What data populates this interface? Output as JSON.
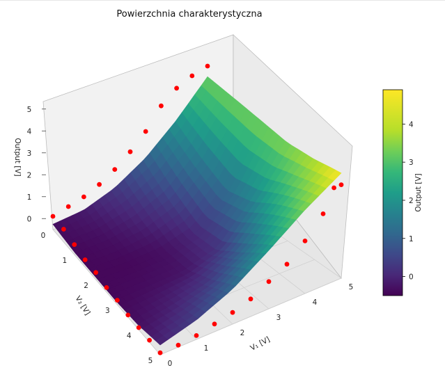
{
  "chart_data": {
    "type": "surface3d",
    "title": "Powierzchnia charakterystyczna",
    "xlabel": "V₁ [V]",
    "ylabel": "V₂ [V]",
    "zlabel": "Output [V]",
    "xlim": [
      0,
      5
    ],
    "ylim": [
      0,
      5
    ],
    "zlim": [
      -0.5,
      5
    ],
    "x_ticks": [
      "0",
      "1",
      "2",
      "3",
      "4",
      "5"
    ],
    "y_ticks": [
      "0",
      "1",
      "2",
      "3",
      "4",
      "5"
    ],
    "z_ticks": [
      "0",
      "1",
      "2",
      "3",
      "4",
      "5"
    ],
    "colormap": "viridis",
    "grid": true,
    "surface_grid": {
      "v1": [
        0,
        1,
        2,
        3,
        4,
        5
      ],
      "v2": [
        0,
        1,
        2,
        3,
        4,
        5
      ],
      "output": [
        [
          3.6,
          3.7,
          3.8,
          3.9,
          4.3,
          4.9
        ],
        [
          2.3,
          1.8,
          1.4,
          1.9,
          2.9,
          3.8
        ],
        [
          1.2,
          0.6,
          0.1,
          0.3,
          1.3,
          2.5
        ],
        [
          0.4,
          0.0,
          -0.3,
          -0.2,
          0.4,
          1.3
        ],
        [
          -0.1,
          -0.3,
          -0.4,
          -0.3,
          0.0,
          0.5
        ],
        [
          -0.3,
          -0.4,
          -0.4,
          -0.4,
          -0.3,
          0.0
        ]
      ]
    },
    "measured_points": [
      {
        "v1": 5.0,
        "v2": 0.0,
        "output": 4.3
      },
      {
        "v1": 5.0,
        "v2": 0.2,
        "output": 4.3
      },
      {
        "v1": 5.0,
        "v2": 0.5,
        "output": 3.2
      },
      {
        "v1": 5.0,
        "v2": 1.0,
        "output": 2.2
      },
      {
        "v1": 5.0,
        "v2": 1.5,
        "output": 1.4
      },
      {
        "v1": 5.0,
        "v2": 2.0,
        "output": 0.9
      },
      {
        "v1": 5.0,
        "v2": 2.5,
        "output": 0.4
      },
      {
        "v1": 5.0,
        "v2": 3.0,
        "output": 0.1
      },
      {
        "v1": 5.0,
        "v2": 3.5,
        "output": -0.1
      },
      {
        "v1": 5.0,
        "v2": 4.0,
        "output": -0.3
      },
      {
        "v1": 5.0,
        "v2": 4.5,
        "output": -0.4
      },
      {
        "v1": 5.0,
        "v2": 5.0,
        "output": -0.4
      },
      {
        "v1": 4.5,
        "v2": 5.0,
        "output": -0.4
      },
      {
        "v1": 4.0,
        "v2": 5.0,
        "output": -0.4
      },
      {
        "v1": 3.5,
        "v2": 5.0,
        "output": -0.4
      },
      {
        "v1": 3.0,
        "v2": 5.0,
        "output": -0.3
      },
      {
        "v1": 2.5,
        "v2": 5.0,
        "output": -0.3
      },
      {
        "v1": 2.0,
        "v2": 5.0,
        "output": -0.2
      },
      {
        "v1": 1.5,
        "v2": 5.0,
        "output": -0.2
      },
      {
        "v1": 1.0,
        "v2": 5.0,
        "output": -0.1
      },
      {
        "v1": 0.5,
        "v2": 5.0,
        "output": 0.0
      },
      {
        "v1": 0.0,
        "v2": 5.0,
        "output": 0.0
      },
      {
        "v1": 0.0,
        "v2": 4.5,
        "output": 0.2
      },
      {
        "v1": 0.0,
        "v2": 4.0,
        "output": 0.4
      },
      {
        "v1": 0.0,
        "v2": 3.5,
        "output": 0.7
      },
      {
        "v1": 0.0,
        "v2": 3.0,
        "output": 1.1
      },
      {
        "v1": 0.0,
        "v2": 2.5,
        "output": 1.6
      },
      {
        "v1": 0.0,
        "v2": 2.0,
        "output": 2.2
      },
      {
        "v1": 0.0,
        "v2": 1.5,
        "output": 3.0
      },
      {
        "v1": 0.0,
        "v2": 1.0,
        "output": 3.5
      },
      {
        "v1": 0.0,
        "v2": 0.5,
        "output": 3.8
      },
      {
        "v1": 0.0,
        "v2": 0.0,
        "output": 4.0
      }
    ],
    "measured_point_color": "#ff0000",
    "colorbar": {
      "label": "Output [V]",
      "range": [
        -0.5,
        4.9
      ],
      "ticks": [
        "0",
        "1",
        "2",
        "3",
        "4"
      ]
    }
  }
}
